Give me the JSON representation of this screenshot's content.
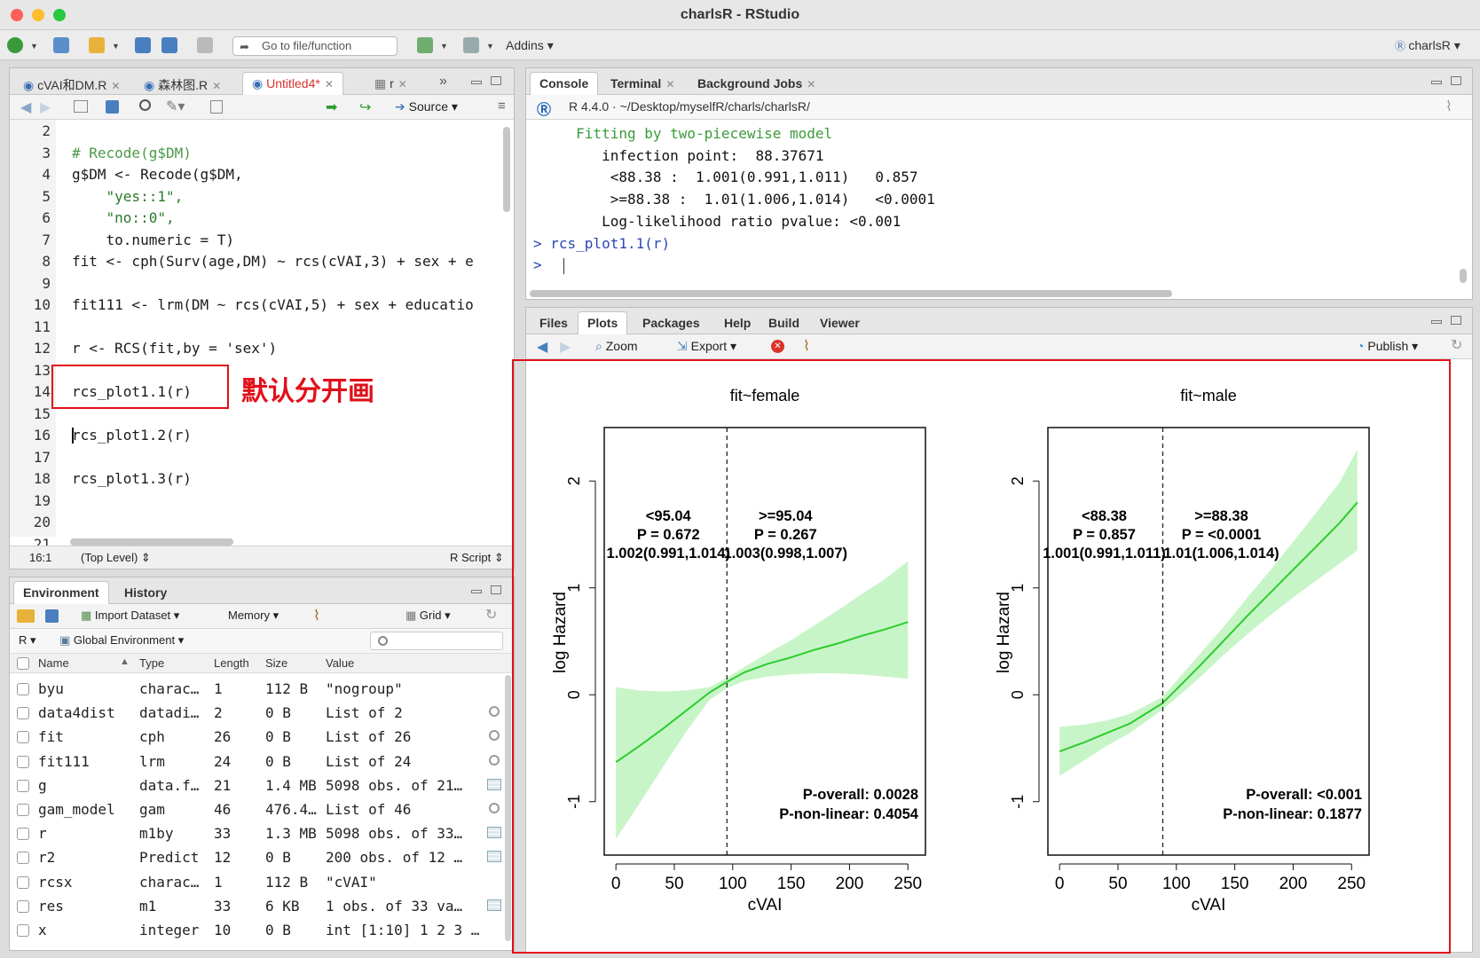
{
  "window": {
    "title": "charlsR - RStudio"
  },
  "toolbar": {
    "goto_placeholder": "Go to file/function",
    "addins": "Addins",
    "project": "charlsR"
  },
  "editor": {
    "tabs": [
      "cVAI和DM.R",
      "森林图.R",
      "Untitled4*",
      "r"
    ],
    "source_label": "Source",
    "lines": [
      {
        "n": "2",
        "text": ""
      },
      {
        "n": "3",
        "text": "# Recode(g$DM)"
      },
      {
        "n": "4",
        "text": "g$DM <- Recode(g$DM,"
      },
      {
        "n": "5",
        "text": "    \"yes::1\","
      },
      {
        "n": "6",
        "text": "    \"no::0\","
      },
      {
        "n": "7",
        "text": "    to.numeric = T)"
      },
      {
        "n": "8",
        "text": "fit <- cph(Surv(age,DM) ~ rcs(cVAI,3) + sex + e"
      },
      {
        "n": "9",
        "text": ""
      },
      {
        "n": "10",
        "text": "fit111 <- lrm(DM ~ rcs(cVAI,5) + sex + educatio"
      },
      {
        "n": "11",
        "text": ""
      },
      {
        "n": "12",
        "text": "r <- RCS(fit,by = 'sex')"
      },
      {
        "n": "13",
        "text": ""
      },
      {
        "n": "14",
        "text": "rcs_plot1.1(r)"
      },
      {
        "n": "15",
        "text": ""
      },
      {
        "n": "16",
        "text": "rcs_plot1.2(r)"
      },
      {
        "n": "17",
        "text": ""
      },
      {
        "n": "18",
        "text": "rcs_plot1.3(r)"
      },
      {
        "n": "19",
        "text": ""
      },
      {
        "n": "20",
        "text": ""
      },
      {
        "n": "21",
        "text": ""
      }
    ],
    "status_pos": "16:1",
    "status_scope": "(Top Level)",
    "status_type": "R Script",
    "annotation": "默认分开画"
  },
  "environment": {
    "tabs": [
      "Environment",
      "History"
    ],
    "import_dataset": "Import Dataset",
    "memory": "Memory",
    "grid": "Grid",
    "r_select": "R",
    "scope": "Global Environment",
    "columns": [
      "Name",
      "Type",
      "Length",
      "Size",
      "Value"
    ],
    "rows": [
      {
        "name": "byu",
        "type": "charac…",
        "length": "1",
        "size": "112 B",
        "value": "\"nogroup\"",
        "icon": "none"
      },
      {
        "name": "data4dist",
        "type": "datadi…",
        "length": "2",
        "size": "0 B",
        "value": "List of 2",
        "icon": "magnifier-icon"
      },
      {
        "name": "fit",
        "type": "cph",
        "length": "26",
        "size": "0 B",
        "value": "List of 26",
        "icon": "magnifier-icon"
      },
      {
        "name": "fit111",
        "type": "lrm",
        "length": "24",
        "size": "0 B",
        "value": "List of 24",
        "icon": "magnifier-icon"
      },
      {
        "name": "g",
        "type": "data.f…",
        "length": "21",
        "size": "1.4 MB",
        "value": "5098 obs. of 21…",
        "icon": "grid-icon"
      },
      {
        "name": "gam_model",
        "type": "gam",
        "length": "46",
        "size": "476.4…",
        "value": "List of 46",
        "icon": "magnifier-icon"
      },
      {
        "name": "r",
        "type": "m1by",
        "length": "33",
        "size": "1.3 MB",
        "value": "5098 obs. of 33…",
        "icon": "grid-icon"
      },
      {
        "name": "r2",
        "type": "Predict",
        "length": "12",
        "size": "0 B",
        "value": "200 obs. of 12 …",
        "icon": "grid-icon"
      },
      {
        "name": "rcsx",
        "type": "charac…",
        "length": "1",
        "size": "112 B",
        "value": "\"cVAI\"",
        "icon": "none"
      },
      {
        "name": "res",
        "type": "m1",
        "length": "33",
        "size": "6 KB",
        "value": "1 obs. of 33 va…",
        "icon": "grid-icon"
      },
      {
        "name": "x",
        "type": "integer",
        "length": "10",
        "size": "0 B",
        "value": "int [1:10] 1 2 3 …",
        "icon": "none"
      }
    ]
  },
  "console": {
    "tabs": [
      "Console",
      "Terminal",
      "Background Jobs"
    ],
    "path": "R 4.4.0 · ~/Desktop/myselfR/charls/charlsR/",
    "lines": [
      {
        "text": "     Fitting by two-piecewise model",
        "color": "#3b9a3b"
      },
      {
        "text": "        infection point:  88.37671",
        "color": "#111111"
      },
      {
        "text": "         <88.38 :  1.001(0.991,1.011)   0.857",
        "color": "#111111"
      },
      {
        "text": "         >=88.38 :  1.01(1.006,1.014)   <0.0001",
        "color": "#111111"
      },
      {
        "text": "        Log-likelihood ratio pvalue: <0.001",
        "color": "#111111"
      },
      {
        "text": "> rcs_plot1.1(r)",
        "color": "#2b46b3"
      },
      {
        "text": "> ",
        "color": "#2b46b3"
      }
    ]
  },
  "plots": {
    "tabs": [
      "Files",
      "Plots",
      "Packages",
      "Help",
      "Build",
      "Viewer"
    ],
    "zoom": "Zoom",
    "export": "Export",
    "publish": "Publish"
  },
  "chart_data": [
    {
      "type": "line",
      "title": "fit~female",
      "xlabel": "cVAI",
      "ylabel": "log Hazard",
      "xlim": [
        -10,
        265
      ],
      "ylim": [
        -1.5,
        2.5
      ],
      "xticks": [
        0,
        50,
        100,
        150,
        200,
        250
      ],
      "yticks": [
        -1,
        0,
        1,
        2
      ],
      "cutpoint": 95.04,
      "x": [
        0,
        20,
        40,
        60,
        80,
        95,
        110,
        130,
        150,
        170,
        190,
        210,
        230,
        250
      ],
      "y": [
        -0.63,
        -0.48,
        -0.32,
        -0.15,
        0.02,
        0.12,
        0.21,
        0.29,
        0.35,
        0.42,
        0.48,
        0.55,
        0.61,
        0.68
      ],
      "lower": [
        -1.35,
        -1.02,
        -0.68,
        -0.35,
        -0.05,
        0.06,
        0.13,
        0.17,
        0.19,
        0.2,
        0.2,
        0.19,
        0.17,
        0.15
      ],
      "upper": [
        0.07,
        0.04,
        0.03,
        0.04,
        0.07,
        0.16,
        0.26,
        0.39,
        0.51,
        0.65,
        0.79,
        0.94,
        1.08,
        1.25
      ],
      "annotations": {
        "left": [
          "<95.04",
          "P = 0.672",
          "1.002(0.991,1.014)"
        ],
        "right": [
          ">=95.04",
          "P = 0.267",
          "1.003(0.998,1.007)"
        ],
        "p_overall": "P-overall: 0.0028",
        "p_nonlinear": "P-non-linear: 0.4054"
      },
      "line_color": "#2ecc2e",
      "band_color": "#c8f5c8"
    },
    {
      "type": "line",
      "title": "fit~male",
      "xlabel": "cVAI",
      "ylabel": "log Hazard",
      "xlim": [
        -10,
        265
      ],
      "ylim": [
        -1.5,
        2.5
      ],
      "xticks": [
        0,
        50,
        100,
        150,
        200,
        250
      ],
      "yticks": [
        -1,
        0,
        1,
        2
      ],
      "cutpoint": 88.38,
      "x": [
        0,
        20,
        40,
        60,
        88,
        100,
        120,
        140,
        160,
        180,
        200,
        220,
        240,
        255
      ],
      "y": [
        -0.53,
        -0.45,
        -0.36,
        -0.27,
        -0.08,
        0.05,
        0.27,
        0.5,
        0.73,
        0.95,
        1.17,
        1.39,
        1.61,
        1.8
      ],
      "lower": [
        -0.76,
        -0.62,
        -0.48,
        -0.36,
        -0.14,
        -0.03,
        0.16,
        0.37,
        0.56,
        0.74,
        0.91,
        1.07,
        1.23,
        1.35
      ],
      "upper": [
        -0.3,
        -0.28,
        -0.24,
        -0.18,
        -0.02,
        0.13,
        0.38,
        0.63,
        0.9,
        1.16,
        1.43,
        1.71,
        1.99,
        2.3
      ],
      "annotations": {
        "left": [
          "<88.38",
          "P = 0.857",
          "1.001(0.991,1.011)"
        ],
        "right": [
          ">=88.38",
          "P = <0.0001",
          "1.01(1.006,1.014)"
        ],
        "p_overall": "P-overall: <0.001",
        "p_nonlinear": "P-non-linear: 0.1877"
      },
      "line_color": "#2ecc2e",
      "band_color": "#c8f5c8"
    }
  ]
}
